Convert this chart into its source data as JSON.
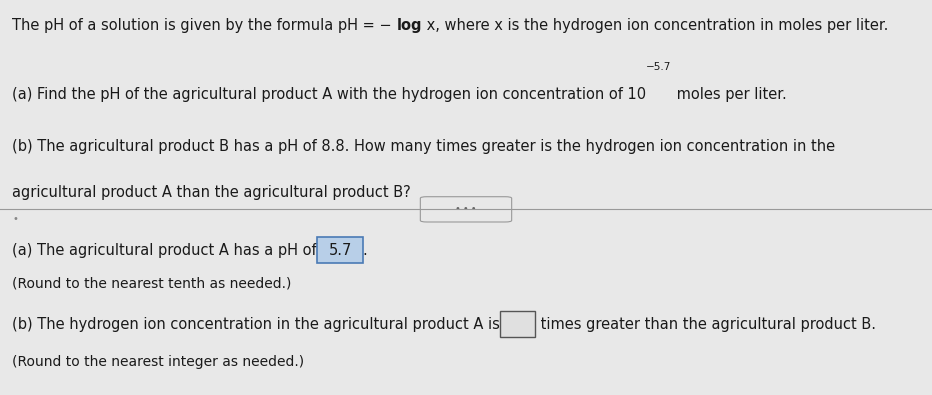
{
  "bg_top": "#e8e8e8",
  "bg_bottom": "#e0e0e0",
  "text_color": "#1a1a1a",
  "font_size": 10.5,
  "font_size_small": 10.0,
  "highlight_bg": "#b8cfe8",
  "highlight_border": "#4a7ab5",
  "empty_box_border": "#555555",
  "divider_color": "#999999",
  "ellipsis_color": "#666666",
  "line1_pre": "The pH of a solution is given by the formula pH = − ",
  "line1_log": "log",
  "line1_post": " x, where x is the hydrogen ion concentration in moles per liter.",
  "line2": "(a) Find the pH of the agricultural product A with the hydrogen ion concentration of 10",
  "line2_sup": "−5.7",
  "line2_post": " moles per liter.",
  "line3": "(b) The agricultural product B has a pH of 8.8. How many times greater is the hydrogen ion concentration in the",
  "line4": "agricultural product A than the agricultural product B?",
  "ans_a_pre": "(a) The agricultural product A has a pH of ",
  "ans_a_val": "5.7",
  "ans_a_post": ".",
  "ans_a_round": "(Round to the nearest tenth as needed.)",
  "ans_b_pre": "(b) The hydrogen ion concentration in the agricultural product A is ",
  "ans_b_post": " times greater than the agricultural product B.",
  "ans_b_round": "(Round to the nearest integer as needed.)"
}
